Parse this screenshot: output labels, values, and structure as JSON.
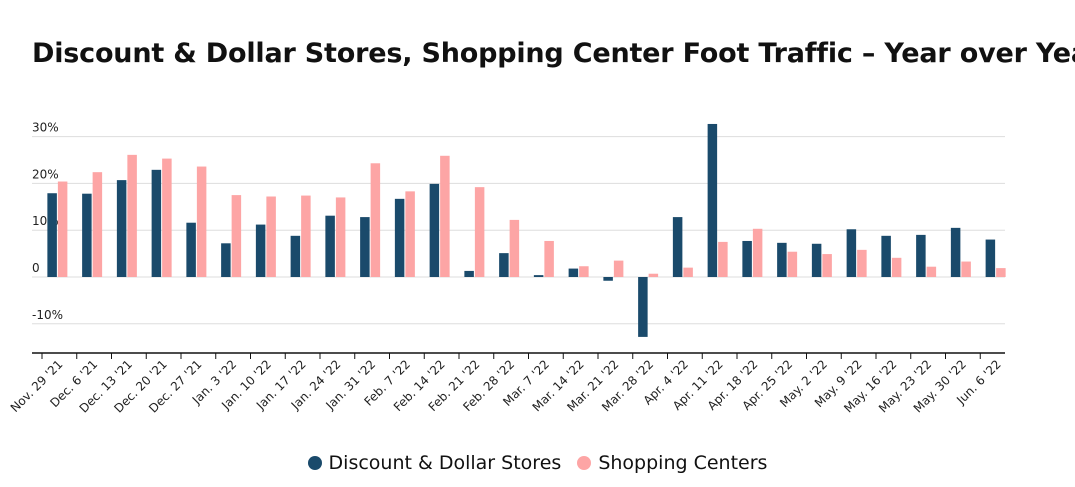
{
  "chart_data": {
    "type": "bar",
    "title": "Discount & Dollar Stores, Shopping Center Foot Traffic – Year over Year",
    "xlabel": "",
    "ylabel": "",
    "ylim": [
      -15,
      32
    ],
    "y_ticks": [
      {
        "value": 30,
        "label": "30%"
      },
      {
        "value": 20,
        "label": "20%"
      },
      {
        "value": 10,
        "label": "10%"
      },
      {
        "value": 0,
        "label": "0"
      },
      {
        "value": -10,
        "label": "-10%"
      }
    ],
    "grid": true,
    "legend_position": "bottom",
    "categories": [
      "Nov. 29 '21",
      "Dec. 6 '21",
      "Dec. 13 '21",
      "Dec. 20 '21",
      "Dec. 27 '21",
      "Jan. 3 '22",
      "Jan. 10 '22",
      "Jan. 17 '22",
      "Jan. 24 '22",
      "Jan. 31 '22",
      "Feb. 7 '22",
      "Feb. 14 '22",
      "Feb. 21 '22",
      "Feb. 28 '22",
      "Mar. 7 '22",
      "Mar. 14 '22",
      "Mar. 21 '22",
      "Mar. 28 '22",
      "Apr. 4 '22",
      "Apr. 11 '22",
      "Apr. 18 '22",
      "Apr. 25 '22",
      "May. 2 '22",
      "May. 9 '22",
      "May. 16 '22",
      "May. 23 '22",
      "May. 30 '22",
      "Jun. 6 '22"
    ],
    "series": [
      {
        "name": "Discount & Dollar Stores",
        "color": "#1a4a6b",
        "values": [
          17.9,
          17.8,
          20.7,
          22.9,
          11.6,
          7.2,
          11.2,
          8.8,
          13.1,
          12.8,
          16.7,
          19.9,
          1.3,
          5.1,
          0.4,
          1.8,
          -0.8,
          -12.8,
          12.8,
          32.7,
          7.7,
          7.3,
          7.1,
          10.2,
          8.8,
          9.0,
          10.5,
          8.0
        ]
      },
      {
        "name": "Shopping Centers",
        "color": "#fda5a5",
        "values": [
          20.4,
          22.4,
          26.1,
          25.3,
          23.6,
          17.5,
          17.2,
          17.4,
          17.0,
          24.3,
          18.3,
          25.9,
          19.2,
          12.2,
          7.7,
          2.3,
          3.5,
          0.7,
          2.0,
          7.5,
          10.3,
          5.4,
          4.9,
          5.8,
          4.1,
          2.2,
          3.3,
          1.9
        ]
      }
    ]
  }
}
